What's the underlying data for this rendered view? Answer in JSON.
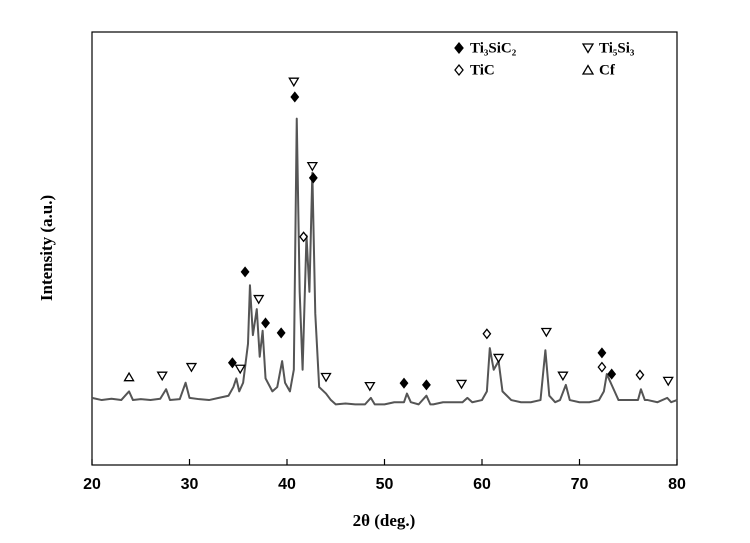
{
  "chart_data": {
    "type": "line",
    "xlabel": "2θ (deg.)",
    "ylabel": "Intensity (a.u.)",
    "xlim": [
      20,
      80
    ],
    "xticks": [
      20,
      30,
      40,
      50,
      60,
      70,
      80
    ],
    "ylim": [
      0,
      100
    ],
    "color": "#555555",
    "x": [
      20,
      21,
      22,
      23,
      23.8,
      24.2,
      25,
      26,
      27,
      27.6,
      28,
      29,
      29.6,
      30,
      31,
      32,
      33,
      34,
      34.5,
      34.8,
      35.1,
      35.5,
      36,
      36.2,
      36.5,
      36.9,
      37.2,
      37.5,
      37.8,
      38.5,
      39,
      39.5,
      39.8,
      40.3,
      40.7,
      41,
      41.3,
      41.6,
      42,
      42.3,
      42.6,
      42.9,
      43.3,
      44,
      44.5,
      45,
      46,
      47,
      48,
      48.6,
      49,
      50,
      51,
      52,
      52.3,
      52.7,
      53.5,
      54.3,
      54.7,
      55,
      56,
      57,
      58,
      58.5,
      59,
      60,
      60.5,
      60.8,
      61.2,
      61.7,
      62.1,
      63,
      64,
      65,
      66,
      66.5,
      66.9,
      67.5,
      68,
      68.6,
      69,
      70,
      71,
      72,
      72.5,
      72.8,
      73.2,
      73.6,
      74,
      75,
      76,
      76.3,
      76.7,
      77,
      78,
      79,
      79.4,
      80
    ],
    "values": [
      15.5,
      15,
      15.3,
      15,
      17,
      15,
      15.2,
      15,
      15.3,
      17.5,
      15,
      15.2,
      19,
      15.5,
      15.2,
      15,
      15.5,
      16,
      18,
      20,
      17,
      19,
      28,
      41.5,
      30,
      36,
      25,
      31,
      20,
      17,
      18,
      24,
      19,
      17,
      22,
      80,
      40,
      22,
      53,
      40,
      67.5,
      35,
      18,
      16.5,
      15,
      14,
      14.2,
      14,
      14,
      15.5,
      14,
      14,
      14.5,
      14.5,
      16.5,
      14.5,
      14,
      16,
      14,
      14,
      14.5,
      14.5,
      14.5,
      15.5,
      14.5,
      15,
      17,
      27,
      22,
      24,
      17,
      15,
      14.5,
      14.5,
      15,
      26.5,
      16,
      14.5,
      15,
      18.5,
      15,
      14.5,
      14.5,
      15,
      17,
      21,
      19,
      17,
      15,
      15,
      15,
      17.5,
      15,
      15,
      14.5,
      15.5,
      14.5,
      15
    ],
    "phases": [
      {
        "name": "Ti₃SiC₂",
        "symbol": "filled-diamond",
        "x": [
          35.7,
          34.4,
          37.8,
          39.4,
          40.8,
          42.7,
          52.0,
          54.3,
          72.3,
          73.3
        ],
        "y": [
          44.6,
          23.6,
          32.8,
          30.5,
          85,
          66.3,
          18.9,
          18.5,
          25.9,
          21
        ]
      },
      {
        "name": "Ti₅Si₃",
        "symbol": "open-triangle-down",
        "x": [
          27.2,
          30.2,
          35.2,
          37.1,
          40.7,
          42.6,
          44.0,
          48.5,
          57.9,
          61.7,
          66.6,
          68.3,
          79.1
        ],
        "y": [
          20.6,
          22.6,
          22.2,
          38.3,
          88.5,
          69,
          20.3,
          18.2,
          18.7,
          24.7,
          30.7,
          20.6,
          19.4
        ]
      },
      {
        "name": "TiC",
        "symbol": "open-diamond",
        "x": [
          41.7,
          60.5,
          72.3,
          76.2
        ],
        "y": [
          52.7,
          30.3,
          22.6,
          20.8
        ]
      },
      {
        "name": "Cf",
        "symbol": "open-triangle-up",
        "x": [
          23.8
        ],
        "y": [
          20.3
        ]
      }
    ]
  }
}
